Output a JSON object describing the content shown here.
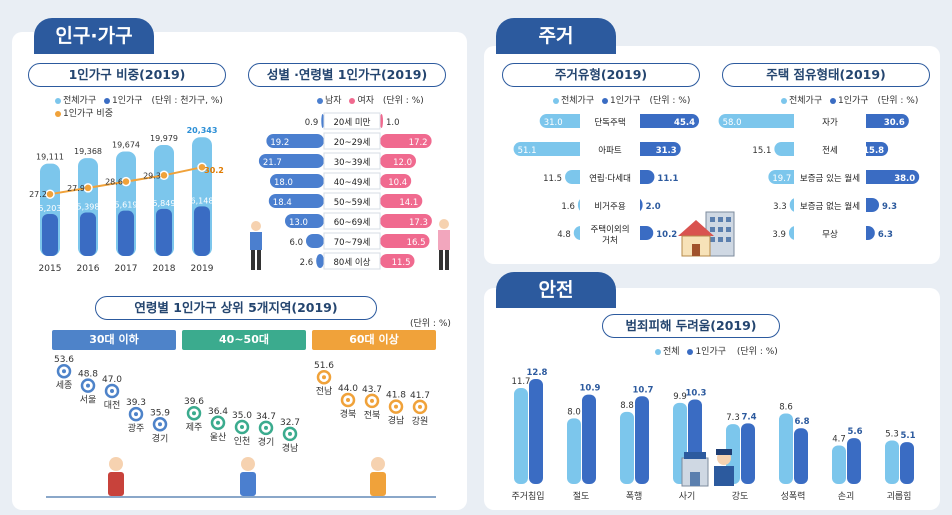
{
  "colors": {
    "navy": "#2c5a9e",
    "light": "#7cc6ec",
    "dark": "#3a6cc3",
    "male": "#4b7fcf",
    "female": "#f06a8f",
    "orange": "#f0a23a",
    "green": "#3bab8e",
    "blue_box": "#4e83c9"
  },
  "sections": {
    "population": "인구·가구",
    "housing": "주거",
    "safety": "안전"
  },
  "icons": {
    "house": "house-icon",
    "man": "man-figure-icon",
    "woman": "woman-figure-icon",
    "police": "police-figure-icon"
  },
  "chart_data": [
    {
      "id": "one_person_ratio",
      "type": "bar",
      "title": "1인가구 비중(2019)",
      "unit_note": "(단위 : 천가구, %)",
      "legend": [
        "전체가구",
        "1인가구",
        "1인가구 비중"
      ],
      "categories": [
        "2015",
        "2016",
        "2017",
        "2018",
        "2019"
      ],
      "series": [
        {
          "name": "전체가구",
          "values": [
            19111,
            19368,
            19674,
            19979,
            20343
          ],
          "labels": [
            "19,111",
            "19,368",
            "19,674",
            "19,979",
            "20,343"
          ]
        },
        {
          "name": "1인가구",
          "values": [
            5203,
            5398,
            5619,
            5849,
            6148
          ],
          "labels": [
            "5,203",
            "5,398",
            "5,619",
            "5,849",
            "6,148"
          ]
        },
        {
          "name": "1인가구 비중",
          "values": [
            27.2,
            27.9,
            28.6,
            29.3,
            30.2
          ]
        }
      ]
    },
    {
      "id": "gender_age",
      "type": "bar",
      "title": "성별 ·연령별 1인가구(2019)",
      "unit_note": "(단위 : %)",
      "legend": [
        "남자",
        "여자"
      ],
      "categories": [
        "20세 미만",
        "20~29세",
        "30~39세",
        "40~49세",
        "50~59세",
        "60~69세",
        "70~79세",
        "80세 이상"
      ],
      "series": [
        {
          "name": "남자",
          "values": [
            0.9,
            19.2,
            21.7,
            18.0,
            18.4,
            13.0,
            6.0,
            2.6
          ]
        },
        {
          "name": "여자",
          "values": [
            1.0,
            17.2,
            12.0,
            10.4,
            14.1,
            17.3,
            16.5,
            11.5
          ]
        }
      ]
    },
    {
      "id": "top_regions",
      "type": "scatter",
      "title": "연령별 1인가구 상위 5개지역(2019)",
      "unit_note": "(단위 : %)",
      "groups": [
        {
          "label": "30대 이하",
          "regions": [
            "세종",
            "서울",
            "대전",
            "광주",
            "경기"
          ],
          "values": [
            53.6,
            48.8,
            47.0,
            39.3,
            35.9
          ]
        },
        {
          "label": "40~50대",
          "regions": [
            "제주",
            "울산",
            "인천",
            "경기",
            "경남"
          ],
          "values": [
            39.6,
            36.4,
            35.0,
            34.7,
            32.7
          ]
        },
        {
          "label": "60대 이상",
          "regions": [
            "전남",
            "경북",
            "전북",
            "경남",
            "강원"
          ],
          "values": [
            51.6,
            44.0,
            43.7,
            41.8,
            41.7
          ]
        }
      ]
    },
    {
      "id": "housing_type",
      "type": "bar",
      "title": "주거유형(2019)",
      "unit_note": "(단위 : %)",
      "legend": [
        "전체가구",
        "1인가구"
      ],
      "categories": [
        "단독주택",
        "아파트",
        "연립·다세대",
        "비거주용",
        "주택이외의 거처"
      ],
      "series": [
        {
          "name": "전체가구",
          "values": [
            31.0,
            51.1,
            11.5,
            1.6,
            4.8
          ]
        },
        {
          "name": "1인가구",
          "values": [
            45.4,
            31.3,
            11.1,
            2.0,
            10.2
          ]
        }
      ]
    },
    {
      "id": "tenure_type",
      "type": "bar",
      "title": "주택 점유형태(2019)",
      "unit_note": "(단위 : %)",
      "legend": [
        "전체가구",
        "1인가구"
      ],
      "categories": [
        "자가",
        "전세",
        "보증금 있는 월세",
        "보증금 없는 월세",
        "무상"
      ],
      "series": [
        {
          "name": "전체가구",
          "values": [
            58.0,
            15.1,
            19.7,
            3.3,
            3.9
          ]
        },
        {
          "name": "1인가구",
          "values": [
            30.6,
            15.8,
            38.0,
            9.3,
            6.3
          ]
        }
      ]
    },
    {
      "id": "crime_fear",
      "type": "bar",
      "title": "범죄피해 두려움(2019)",
      "unit_note": "(단위 : %)",
      "legend": [
        "전체",
        "1인가구"
      ],
      "categories": [
        "주거침입",
        "절도",
        "폭행",
        "사기",
        "강도",
        "성폭력",
        "손괴",
        "괴롭힘"
      ],
      "series": [
        {
          "name": "전체",
          "values": [
            11.7,
            8.0,
            8.8,
            9.9,
            7.3,
            8.6,
            4.7,
            5.3
          ]
        },
        {
          "name": "1인가구",
          "values": [
            12.8,
            10.9,
            10.7,
            10.3,
            7.4,
            6.8,
            5.6,
            5.1
          ]
        }
      ]
    }
  ]
}
